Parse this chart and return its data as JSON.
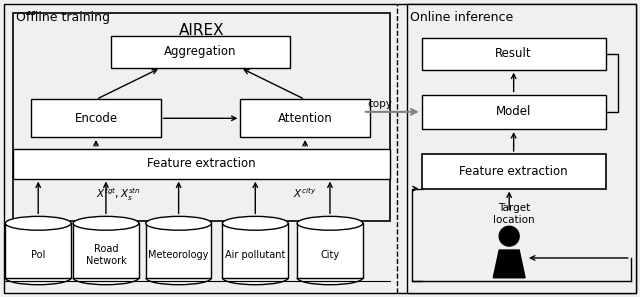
{
  "fig_width": 6.4,
  "fig_height": 2.97,
  "dpi": 100,
  "bg_color": "#f0f0f0",
  "box_bg": "white",
  "offline_title": "Offline training",
  "online_title": "Online inference",
  "airex_label": "AIREX",
  "aggregation_label": "Aggregation",
  "encode_label": "Encode",
  "attention_label": "Attention",
  "feature_extraction_label": "Feature extraction",
  "result_label": "Result",
  "model_label": "Model",
  "feature_extraction_online_label": "Feature extraction",
  "copy_label": "copy",
  "target_location_label": "Target\nlocation",
  "db_labels": [
    "PoI",
    "Road\nNetwork",
    "Meteorology",
    "Air pollutant",
    "City"
  ],
  "x_tgt_label": "$X^{tgt}, X_s^{stn}$",
  "x_city_label": "$X^{city}$"
}
